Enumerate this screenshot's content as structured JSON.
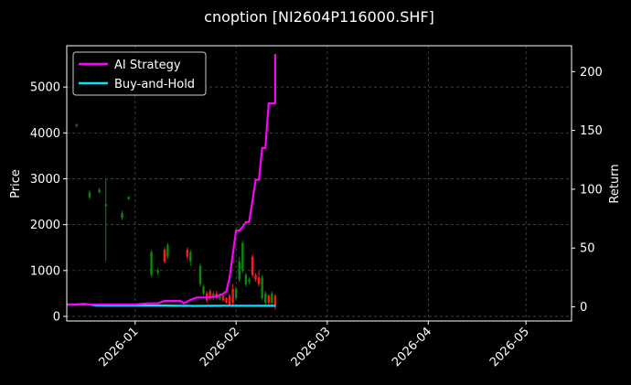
{
  "chart_data": {
    "type": "line",
    "title": "cnoption [NI2604P116000.SHF]",
    "xlabel": "",
    "ylabel": "Price",
    "y2label": "Return",
    "x_range": [
      "2025-12-11",
      "2026-05-15"
    ],
    "ylim": [
      -100,
      5900
    ],
    "y2lim": [
      -12,
      222
    ],
    "yticks": [
      0,
      1000,
      2000,
      3000,
      4000,
      5000
    ],
    "y2ticks": [
      0,
      50,
      100,
      150,
      200
    ],
    "xticks": [
      "2026-01-01",
      "2026-02-01",
      "2026-03-01",
      "2026-04-01",
      "2026-05-01"
    ],
    "xticklabels": [
      "2026-01",
      "2026-02",
      "2026-03",
      "2026-04",
      "2026-05"
    ],
    "grid": true,
    "legend": {
      "position": "top-left",
      "entries": [
        "AI Strategy",
        "Buy-and-Hold"
      ]
    },
    "colors": {
      "ai": "#ff00ff",
      "bh": "#00e5ff",
      "up": "#ff1a1a",
      "down": "#0a8a0a",
      "background": "#000000"
    },
    "series": [
      {
        "name": "AI Strategy",
        "axis": "right",
        "x": [
          "2025-12-11",
          "2025-12-15",
          "2025-12-18",
          "2025-12-22",
          "2025-12-25",
          "2025-12-29",
          "2026-01-01",
          "2026-01-05",
          "2026-01-08",
          "2026-01-10",
          "2026-01-12",
          "2026-01-15",
          "2026-01-16",
          "2026-01-18",
          "2026-01-20",
          "2026-01-22",
          "2026-01-24",
          "2026-01-26",
          "2026-01-27",
          "2026-01-28",
          "2026-01-29",
          "2026-01-30",
          "2026-01-31",
          "2026-02-01",
          "2026-02-02",
          "2026-02-03",
          "2026-02-04",
          "2026-02-05",
          "2026-02-06",
          "2026-02-07",
          "2026-02-08",
          "2026-02-09",
          "2026-02-10",
          "2026-02-11",
          "2026-02-12",
          "2026-02-13",
          "2026-02-13"
        ],
        "values": [
          2,
          2,
          2,
          2,
          2,
          2,
          2,
          3,
          3,
          5,
          5,
          5,
          3,
          6,
          8,
          8,
          8,
          9,
          10,
          11,
          13,
          25,
          45,
          65,
          65,
          68,
          72,
          72,
          90,
          108,
          108,
          135,
          135,
          173,
          173,
          173,
          215
        ]
      },
      {
        "name": "Buy-and-Hold",
        "axis": "right",
        "x": [
          "2025-12-11",
          "2025-12-14",
          "2025-12-16",
          "2025-12-18",
          "2025-12-20",
          "2025-12-25",
          "2026-01-01",
          "2026-01-10",
          "2026-01-15",
          "2026-01-20",
          "2026-01-25",
          "2026-01-30",
          "2026-02-05",
          "2026-02-13"
        ],
        "values": [
          2,
          2,
          2.4,
          2,
          1.2,
          1.1,
          1.1,
          1.1,
          0.9,
          0.8,
          0.9,
          1.0,
          1.0,
          0.9
        ]
      }
    ],
    "candles": [
      {
        "x": "2025-12-14",
        "open": 4180,
        "close": 4150,
        "high": 4200,
        "low": 4130
      },
      {
        "x": "2025-12-18",
        "open": 2700,
        "close": 2600,
        "high": 2750,
        "low": 2550
      },
      {
        "x": "2025-12-21",
        "open": 2760,
        "close": 2700,
        "high": 2800,
        "low": 2680
      },
      {
        "x": "2025-12-23",
        "open": 2450,
        "close": 2400,
        "high": 3000,
        "low": 1200
      },
      {
        "x": "2025-12-28",
        "open": 2250,
        "close": 2150,
        "high": 2300,
        "low": 2100
      },
      {
        "x": "2025-12-30",
        "open": 2600,
        "close": 2560,
        "high": 2620,
        "low": 2540
      },
      {
        "x": "2026-01-06",
        "open": 1400,
        "close": 900,
        "high": 1450,
        "low": 850
      },
      {
        "x": "2026-01-08",
        "open": 1000,
        "close": 950,
        "high": 1050,
        "low": 900
      },
      {
        "x": "2026-01-10",
        "open": 1200,
        "close": 1450,
        "high": 1500,
        "low": 1150
      },
      {
        "x": "2026-01-11",
        "open": 1550,
        "close": 1300,
        "high": 1600,
        "low": 1250
      },
      {
        "x": "2026-01-15",
        "open": 3000,
        "close": 2980,
        "high": 3020,
        "low": 2960
      },
      {
        "x": "2026-01-17",
        "open": 1300,
        "close": 1450,
        "high": 1500,
        "low": 1250
      },
      {
        "x": "2026-01-18",
        "open": 1400,
        "close": 1200,
        "high": 1450,
        "low": 1100
      },
      {
        "x": "2026-01-21",
        "open": 1100,
        "close": 700,
        "high": 1150,
        "low": 650
      },
      {
        "x": "2026-01-22",
        "open": 650,
        "close": 500,
        "high": 700,
        "low": 450
      },
      {
        "x": "2026-01-23",
        "open": 350,
        "close": 500,
        "high": 550,
        "low": 300
      },
      {
        "x": "2026-01-24",
        "open": 400,
        "close": 550,
        "high": 600,
        "low": 350
      },
      {
        "x": "2026-01-25",
        "open": 500,
        "close": 400,
        "high": 550,
        "low": 350
      },
      {
        "x": "2026-01-26",
        "open": 400,
        "close": 500,
        "high": 550,
        "low": 380
      },
      {
        "x": "2026-01-27",
        "open": 450,
        "close": 380,
        "high": 500,
        "low": 350
      },
      {
        "x": "2026-01-28",
        "open": 350,
        "close": 450,
        "high": 480,
        "low": 320
      },
      {
        "x": "2026-01-29",
        "open": 300,
        "close": 400,
        "high": 420,
        "low": 280
      },
      {
        "x": "2026-01-30",
        "open": 250,
        "close": 450,
        "high": 500,
        "low": 230
      },
      {
        "x": "2026-01-31",
        "open": 300,
        "close": 600,
        "high": 700,
        "low": 250
      },
      {
        "x": "2026-02-01",
        "open": 600,
        "close": 400,
        "high": 650,
        "low": 350
      },
      {
        "x": "2026-02-02",
        "open": 1200,
        "close": 800,
        "high": 1300,
        "low": 750
      },
      {
        "x": "2026-02-03",
        "open": 1600,
        "close": 1000,
        "high": 1650,
        "low": 950
      },
      {
        "x": "2026-02-04",
        "open": 900,
        "close": 700,
        "high": 950,
        "low": 650
      },
      {
        "x": "2026-02-05",
        "open": 800,
        "close": 750,
        "high": 850,
        "low": 700
      },
      {
        "x": "2026-02-06",
        "open": 900,
        "close": 1300,
        "high": 1350,
        "low": 850
      },
      {
        "x": "2026-02-07",
        "open": 800,
        "close": 900,
        "high": 950,
        "low": 750
      },
      {
        "x": "2026-02-08",
        "open": 700,
        "close": 850,
        "high": 1000,
        "low": 650
      },
      {
        "x": "2026-02-09",
        "open": 850,
        "close": 400,
        "high": 900,
        "low": 350
      },
      {
        "x": "2026-02-10",
        "open": 500,
        "close": 300,
        "high": 550,
        "low": 250
      },
      {
        "x": "2026-02-11",
        "open": 300,
        "close": 450,
        "high": 480,
        "low": 250
      },
      {
        "x": "2026-02-12",
        "open": 500,
        "close": 300,
        "high": 550,
        "low": 250
      },
      {
        "x": "2026-02-13",
        "open": 200,
        "close": 450,
        "high": 480,
        "low": 150
      }
    ]
  }
}
